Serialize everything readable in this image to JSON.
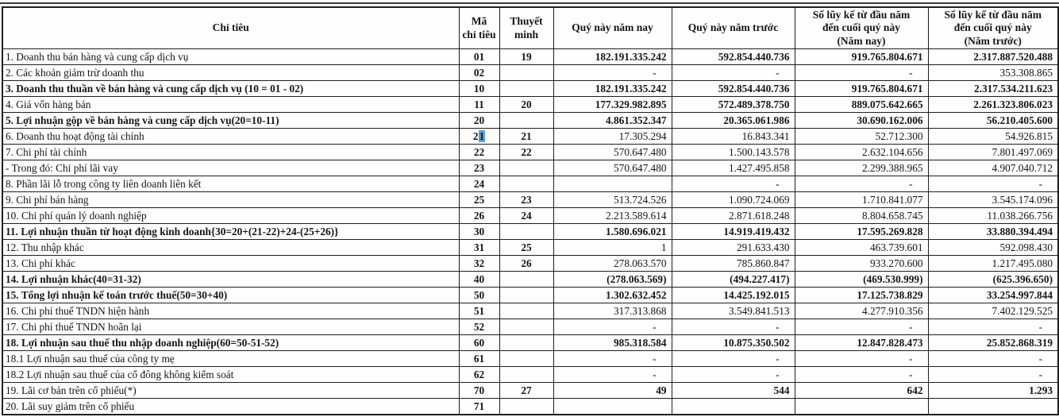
{
  "accent_colors": {
    "selection_background": "#5f9dcb",
    "selection_text": "#0c2134",
    "border": "#1e1e1e"
  },
  "table": {
    "headers": [
      "Chỉ tiêu",
      "Mã\nchỉ tiêu",
      "Thuyết\nminh",
      "Quý này năm nay",
      "Quý này năm trước",
      "Số lũy kế từ đầu năm\nđến cuối quý này\n(Năm nay)",
      "Số lũy kế từ đầu năm\nđến cuối quý này\n(Năm trước)"
    ],
    "rows": [
      {
        "label": "1. Doanh thu bán hàng và cung cấp dịch vụ",
        "code": "01",
        "note": "19",
        "v1": "182.191.335.242",
        "v2": "592.854.440.736",
        "v3": "919.765.804.671",
        "v4": "2.317.887.520.488",
        "bold_values": true
      },
      {
        "label": "2. Các khoản giảm trừ doanh thu",
        "code": "02",
        "note": "",
        "v1": "-",
        "v2": "-",
        "v3": "-",
        "v4": "353.308.865"
      },
      {
        "label": "3. Doanh thu thuần về bán hàng và cung cấp dịch vụ (10 = 01 - 02)",
        "code": "10",
        "note": "",
        "v1": "182.191.335.242",
        "v2": "592.854.440.736",
        "v3": "919.765.804.671",
        "v4": "2.317.534.211.623",
        "bold_label": true,
        "bold_values": true
      },
      {
        "label": "4. Giá vốn hàng bán",
        "code": "11",
        "note": "20",
        "v1": "177.329.982.895",
        "v2": "572.489.378.750",
        "v3": "889.075.642.665",
        "v4": "2.261.323.806.023",
        "bold_values": true
      },
      {
        "label": "5. Lợi nhuận gộp về bán hàng và cung cấp dịch vụ(20=10-11)",
        "code": "20",
        "note": "",
        "v1": "4.861.352.347",
        "v2": "20.365.061.986",
        "v3": "30.690.162.006",
        "v4": "56.210.405.600",
        "bold_label": true,
        "bold_values": true
      },
      {
        "label": "6. Doanh thu hoạt động tài chính",
        "code": "21",
        "note": "21",
        "v1": "17.305.294",
        "v2": "16.843.341",
        "v3": "52.712.300",
        "v4": "54.926.815",
        "code_highlight": true
      },
      {
        "label": "7. Chi phí tài chính",
        "code": "22",
        "note": "22",
        "v1": "570.647.480",
        "v2": "1.500.143.578",
        "v3": "2.632.104.656",
        "v4": "7.801.497.069"
      },
      {
        "label": "- Trong đó: Chi phí lãi vay",
        "code": "23",
        "note": "",
        "v1": "570.647.480",
        "v2": "1.427.495.858",
        "v3": "2.299.388.965",
        "v4": "4.907.040.712"
      },
      {
        "label": "8. Phần lãi lỗ trong công ty liên doanh liên kết",
        "code": "24",
        "note": "",
        "v1": "",
        "v2": "-",
        "v3": "-",
        "v4": "-"
      },
      {
        "label": "9. Chi phí bán hàng",
        "code": "25",
        "note": "23",
        "v1": "513.724.526",
        "v2": "1.090.724.069",
        "v3": "1.710.841.077",
        "v4": "3.545.174.096"
      },
      {
        "label": "10. Chi phí quản lý doanh nghiệp",
        "code": "26",
        "note": "24",
        "v1": "2.213.589.614",
        "v2": "2.871.618.248",
        "v3": "8.804.658.745",
        "v4": "11.038.266.756"
      },
      {
        "label": "11. Lợi nhuận thuần từ hoạt động kinh doanh{30=20+(21-22)+24-(25+26)}",
        "code": "30",
        "note": "",
        "v1": "1.580.696.021",
        "v2": "14.919.419.432",
        "v3": "17.595.269.828",
        "v4": "33.880.394.494",
        "bold_label": true,
        "bold_values": true
      },
      {
        "label": "12. Thu nhập khác",
        "code": "31",
        "note": "25",
        "v1": "1",
        "v2": "291.633.430",
        "v3": "463.739.601",
        "v4": "592.098.430"
      },
      {
        "label": "13. Chi phí khác",
        "code": "32",
        "note": "26",
        "v1": "278.063.570",
        "v2": "785.860.847",
        "v3": "933.270.600",
        "v4": "1.217.495.080"
      },
      {
        "label": "14. Lợi nhuận khác(40=31-32)",
        "code": "40",
        "note": "",
        "v1": "(278.063.569)",
        "v2": "(494.227.417)",
        "v3": "(469.530.999)",
        "v4": "(625.396.650)",
        "bold_label": true,
        "bold_values": true
      },
      {
        "label": "15. Tổng lợi nhuận kế toán trước thuế(50=30+40)",
        "code": "50",
        "note": "",
        "v1": "1.302.632.452",
        "v2": "14.425.192.015",
        "v3": "17.125.738.829",
        "v4": "33.254.997.844",
        "bold_label": true,
        "bold_values": true
      },
      {
        "label": "16. Chi phí thuế TNDN hiện hành",
        "code": "51",
        "note": "",
        "v1": "317.313.868",
        "v2": "3.549.841.513",
        "v3": "4.277.910.356",
        "v4": "7.402.129.525"
      },
      {
        "label": "17. Chi phí thuế TNDN hoãn lại",
        "code": "52",
        "note": "",
        "v1": "-",
        "v2": "-",
        "v3": "-",
        "v4": "-"
      },
      {
        "label": "18. Lợi nhuận sau thuế thu nhập doanh nghiệp(60=50-51-52)",
        "code": "60",
        "note": "",
        "v1": "985.318.584",
        "v2": "10.875.350.502",
        "v3": "12.847.828.473",
        "v4": "25.852.868.319",
        "bold_label": true,
        "bold_values": true
      },
      {
        "label": "18.1 Lợi nhuận sau thuế của công ty mẹ",
        "code": "61",
        "note": "",
        "v1": "-",
        "v2": "-",
        "v3": "-",
        "v4": "-"
      },
      {
        "label": "18.2 Lợi nhuận sau thuế của cổ đông không kiểm soát",
        "code": "62",
        "note": "",
        "v1": "-",
        "v2": "-",
        "v3": "-",
        "v4": "-"
      },
      {
        "label": "19. Lãi cơ bản trên cổ phiếu(*)",
        "code": "70",
        "note": "27",
        "v1": "49",
        "v2": "544",
        "v3": "642",
        "v4": "1.293",
        "bold_values": true
      },
      {
        "label": "20. Lãi suy giảm trên cổ phiếu",
        "code": "71",
        "note": "",
        "v1": "",
        "v2": "",
        "v3": "",
        "v4": ""
      }
    ]
  }
}
